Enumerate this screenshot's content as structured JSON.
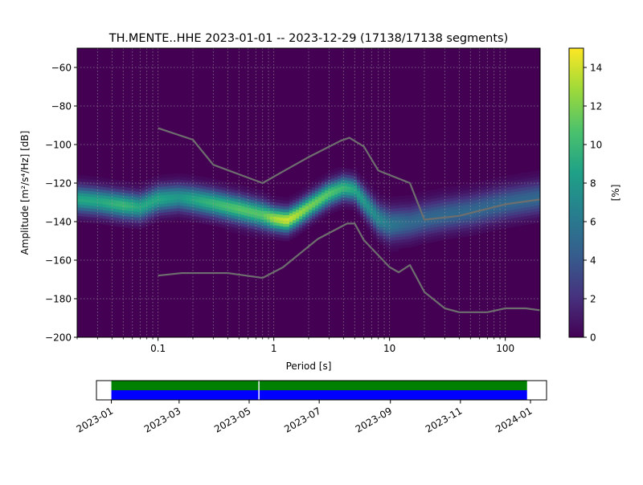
{
  "chart_data": [
    {
      "type": "heatmap",
      "title": "TH.MENTE..HHE   2023-01-01 -- 2023-12-29  (17138/17138 segments)",
      "xlabel": "Period [s]",
      "ylabel": "Amplitude [m²/s⁴/Hz] [dB]",
      "x_scale": "log",
      "xlim": [
        0.02,
        200
      ],
      "ylim": [
        -200,
        -50
      ],
      "x_ticks": [
        0.1,
        1,
        10,
        100
      ],
      "x_tick_labels": [
        "0.1",
        "1",
        "10",
        "100"
      ],
      "y_ticks": [
        -60,
        -80,
        -100,
        -120,
        -140,
        -160,
        -180,
        -200
      ],
      "y_tick_labels": [
        "−60",
        "−80",
        "−100",
        "−120",
        "−140",
        "−160",
        "−180",
        "−200"
      ],
      "grid": true,
      "colormap": "viridis",
      "colorbar": {
        "label": "[%]",
        "min": 0,
        "max": 15,
        "ticks": [
          0,
          2,
          4,
          6,
          8,
          10,
          12,
          14
        ],
        "tick_labels": [
          "0",
          "2",
          "4",
          "6",
          "8",
          "10",
          "12",
          "14"
        ]
      },
      "ridge": {
        "period": [
          0.02,
          0.03,
          0.05,
          0.07,
          0.1,
          0.15,
          0.2,
          0.3,
          0.5,
          0.8,
          1.0,
          1.3,
          1.6,
          2.0,
          3.0,
          4.0,
          5.0,
          6.0,
          8.0,
          10,
          15,
          20,
          30,
          50,
          100,
          200
        ],
        "db": [
          -129,
          -130,
          -132,
          -133,
          -129,
          -128,
          -129,
          -131,
          -134,
          -137,
          -139,
          -140,
          -137,
          -133,
          -126,
          -123,
          -124,
          -130,
          -139,
          -142,
          -141,
          -139,
          -137,
          -135,
          -131,
          -128
        ],
        "peak_percent": [
          9,
          9,
          10,
          9,
          9,
          8,
          9,
          10,
          11,
          11,
          13,
          14,
          13,
          12,
          11,
          10,
          9,
          8,
          7,
          6,
          5,
          5,
          5,
          5,
          5,
          5
        ],
        "width_db": [
          9,
          9,
          9,
          9,
          9,
          9,
          9,
          9,
          9,
          9,
          8,
          8,
          8,
          8,
          8,
          8,
          8,
          9,
          10,
          11,
          11,
          11,
          11,
          11,
          11,
          11
        ]
      },
      "series": [
        {
          "color": "#6e6e6e",
          "x": [
            0.1,
            0.2,
            0.3,
            0.8,
            1.2,
            2.0,
            3.8,
            4.5,
            6.0,
            8.0,
            15,
            20,
            40,
            100,
            200
          ],
          "y": [
            -91.5,
            -97.5,
            -110.5,
            -120,
            -114,
            -106.5,
            -98,
            -96.5,
            -101,
            -113.5,
            -120,
            -139,
            -137,
            -131,
            -128.5
          ]
        },
        {
          "color": "#6e6e6e",
          "x": [
            0.1,
            0.16,
            0.4,
            0.8,
            1.2,
            2.4,
            4.3,
            5.0,
            6.0,
            10,
            12,
            15,
            20,
            30,
            40,
            70,
            100,
            150,
            200
          ],
          "y": [
            -168,
            -166.7,
            -166.7,
            -169.2,
            -163.7,
            -149,
            -141,
            -141,
            -149.6,
            -163.6,
            -166.3,
            -162.5,
            -176.5,
            -185,
            -187,
            -187,
            -185,
            -185,
            -186
          ]
        }
      ]
    },
    {
      "type": "timeline",
      "x_tick_labels": [
        "2023-01",
        "2023-03",
        "2023-05",
        "2023-07",
        "2023-09",
        "2023-11",
        "2024-01"
      ],
      "x_ticks": [
        "2023-01-01",
        "2023-03-01",
        "2023-05-01",
        "2023-07-01",
        "2023-09-01",
        "2023-11-01",
        "2024-01-01"
      ],
      "xlim": [
        "2022-12-19",
        "2024-01-15"
      ],
      "coverage": [
        {
          "start": "2023-01-01",
          "end": "2023-05-09",
          "colors": [
            "#008000",
            "#0000ff"
          ]
        },
        {
          "start": "2023-05-10",
          "end": "2023-12-29",
          "colors": [
            "#008000",
            "#0000ff"
          ]
        }
      ]
    }
  ]
}
